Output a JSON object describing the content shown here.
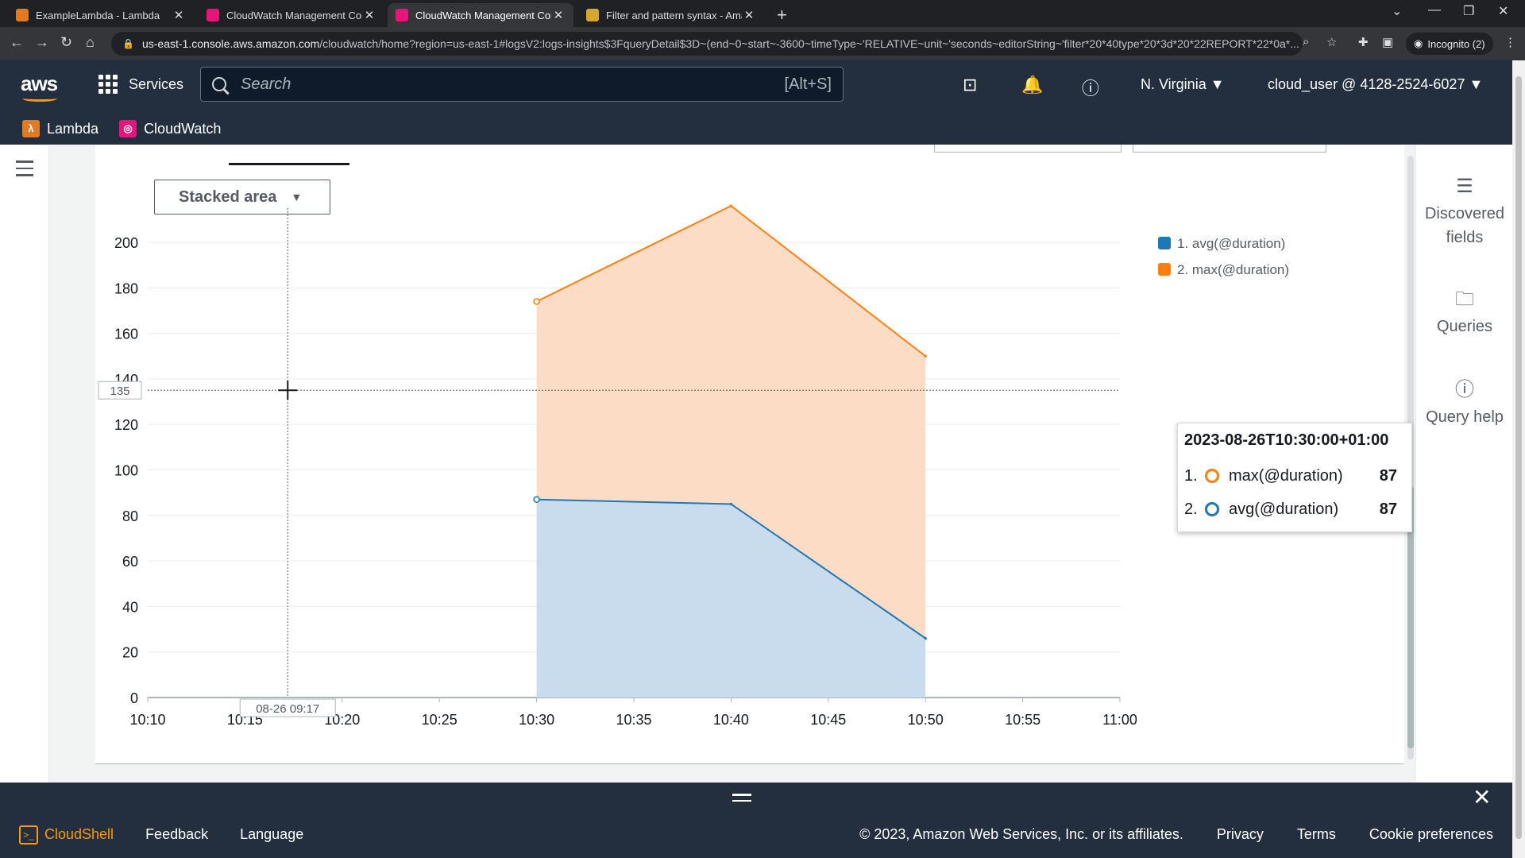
{
  "browser": {
    "tabs": [
      {
        "label": "ExampleLambda - Lambda",
        "color": "#e07b24",
        "active": false
      },
      {
        "label": "CloudWatch Management Conso",
        "color": "#e7157b",
        "active": false
      },
      {
        "label": "CloudWatch Management Conso",
        "color": "#e7157b",
        "active": true
      },
      {
        "label": "Filter and pattern syntax - Amazo",
        "color": "#d7a62c",
        "active": false
      }
    ],
    "url_domain": "us-east-1.console.aws.amazon.com",
    "url_path": "/cloudwatch/home?region=us-east-1#logsV2:logs-insights$3FqueryDetail$3D~(end~0~start~-3600~timeType~'RELATIVE~unit~'seconds~editorString~'filter*20*40type*20*3d*20*22REPORT*22*0a*...",
    "incognito_label": "Incognito (2)"
  },
  "aws_header": {
    "logo": "aws",
    "services_label": "Services",
    "search_placeholder": "Search",
    "search_shortcut": "[Alt+S]",
    "region_label": "N. Virginia",
    "account_label": "cloud_user @ 4128-2524-6027",
    "favorites": [
      {
        "label": "Lambda",
        "color": "#e07b24"
      },
      {
        "label": "CloudWatch",
        "color": "#e7157b"
      }
    ]
  },
  "viz": {
    "chart_type_label": "Stacked area"
  },
  "chart_data": {
    "type": "area",
    "stacked": true,
    "x": [
      "10:30",
      "10:40",
      "10:50"
    ],
    "x_ticks": [
      "10:10",
      "10:15",
      "10:20",
      "10:25",
      "10:30",
      "10:35",
      "10:40",
      "10:45",
      "10:50",
      "10:55",
      "11:00"
    ],
    "y_ticks": [
      0,
      20,
      40,
      60,
      80,
      100,
      120,
      140,
      160,
      180,
      200
    ],
    "ylim": [
      0,
      215
    ],
    "series": [
      {
        "name": "1. avg(@duration)",
        "color": "#1f77b4",
        "fill": "#c8dcee",
        "x_min": [
          30,
          40,
          50
        ],
        "values": [
          87,
          85,
          26
        ]
      },
      {
        "name": "2. max(@duration)",
        "color": "#ff7f0e",
        "fill": "#fddcc6",
        "x_min": [
          30,
          40,
          50
        ],
        "values": [
          87,
          131,
          124
        ]
      }
    ],
    "x_domain_min": [
      10,
      60
    ],
    "crosshair": {
      "y_label": "135",
      "y_value": 135,
      "x_label": "08-26 09:17",
      "x_value_min": 17.2
    }
  },
  "tooltip": {
    "title": "2023-08-26T10:30:00+01:00",
    "rows": [
      {
        "index": "1.",
        "name": "max(@duration)",
        "value": "87",
        "color": "#ff7f0e"
      },
      {
        "index": "2.",
        "name": "avg(@duration)",
        "value": "87",
        "color": "#1f77b4"
      }
    ]
  },
  "tools": {
    "discovered_fields": "Discovered fields",
    "queries": "Queries",
    "query_help": "Query help"
  },
  "footer": {
    "cloudshell": "CloudShell",
    "feedback": "Feedback",
    "language": "Language",
    "copyright": "© 2023, Amazon Web Services, Inc. or its affiliates.",
    "privacy": "Privacy",
    "terms": "Terms",
    "cookies": "Cookie preferences"
  }
}
